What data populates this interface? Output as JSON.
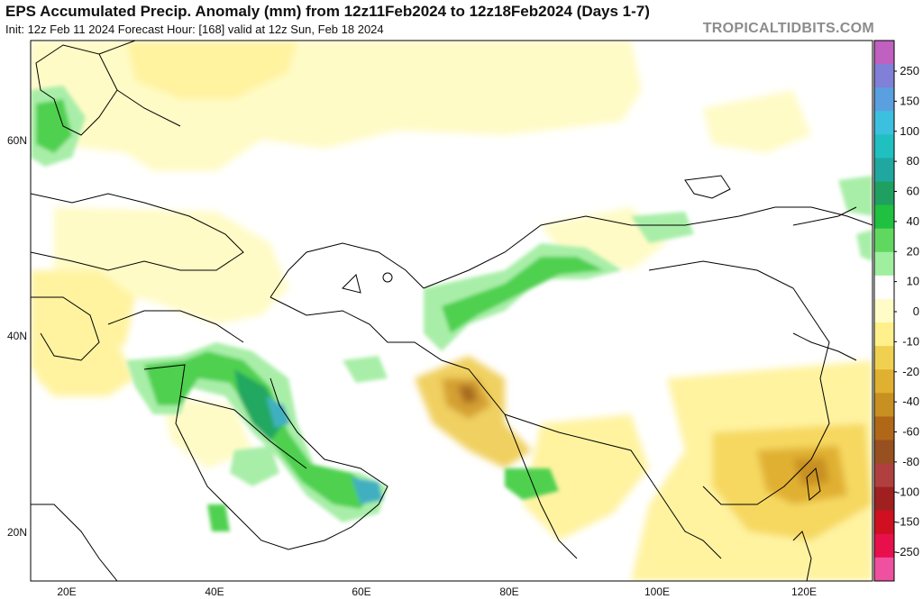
{
  "header": {
    "title": "EPS Accumulated Precip. Anomaly (mm) from 12z11Feb2024 to 12z18Feb2024 (Days 1-7)",
    "subtitle": "Init: 12z Feb 11 2024   Forecast Hour: [168]   valid at 12z Sun, Feb 18 2024",
    "brand": "TROPICALTIDBITS.COM"
  },
  "map": {
    "lat_labels": [
      "60N",
      "40N",
      "20N"
    ],
    "lon_labels": [
      "20E",
      "40E",
      "60E",
      "80E",
      "100E",
      "120E"
    ]
  },
  "colorbar": {
    "labels": [
      "250",
      "150",
      "100",
      "80",
      "60",
      "40",
      "20",
      "10",
      "0",
      "-10",
      "-20",
      "-40",
      "-60",
      "-80",
      "-100",
      "-150",
      "-250"
    ],
    "colors": [
      "#c060c0",
      "#8080d8",
      "#5aa0e0",
      "#3cc0e0",
      "#20c0c0",
      "#20a8a0",
      "#20a060",
      "#20c040",
      "#60d860",
      "#a0eea0",
      "#ffffff",
      "#fffcc8",
      "#fff08c",
      "#f0d050",
      "#e0b030",
      "#c89020",
      "#b06818",
      "#985020",
      "#b04040",
      "#a02020",
      "#d01020",
      "#e8104c",
      "#f050a0"
    ]
  }
}
